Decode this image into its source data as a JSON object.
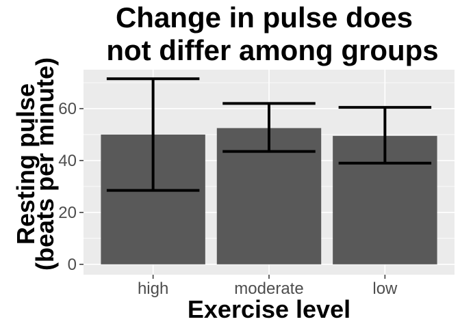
{
  "chart_data": {
    "type": "bar",
    "title_lines": [
      "Change in pulse does",
      "not differ among groups"
    ],
    "xlabel": "Exercise level",
    "ylabel_lines": [
      "Resting pulse",
      "(beats per minute)"
    ],
    "categories": [
      "high",
      "moderate",
      "low"
    ],
    "values": [
      50,
      52.5,
      49.5
    ],
    "error_low": [
      28.5,
      43.5,
      39
    ],
    "error_high": [
      71.5,
      62,
      60.5
    ],
    "ylim": [
      -4,
      75
    ],
    "yticks": [
      0,
      20,
      40,
      60
    ],
    "yticks_minor": [
      10,
      30,
      50,
      70
    ],
    "grid": true,
    "colors": {
      "bar": "#595959",
      "panel": "#ebebeb",
      "grid": "#ffffff",
      "errorbar": "#000000",
      "tick": "#333333"
    }
  }
}
